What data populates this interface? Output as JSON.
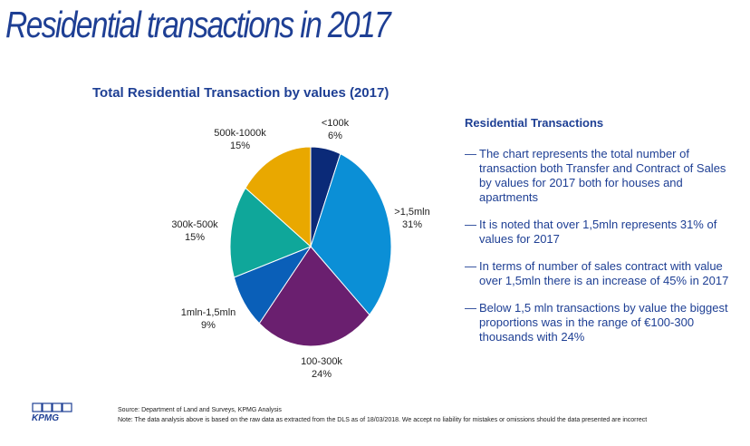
{
  "page": {
    "title": "Residential transactions in 2017"
  },
  "chart_data": {
    "type": "pie",
    "title": "Total Residential Transaction by values (2017)",
    "slices": [
      {
        "label": "<100k",
        "value": 6,
        "value_label": "6%",
        "color": "#0b2a78"
      },
      {
        "label": ">1,5mln",
        "value": 31,
        "value_label": "31%",
        "color": "#0b8fd6"
      },
      {
        "label": "100-300k",
        "value": 24,
        "value_label": "24%",
        "color": "#6a1f6f"
      },
      {
        "label": "1mln-1,5mln",
        "value": 9,
        "value_label": "9%",
        "color": "#0a5fb8"
      },
      {
        "label": "300k-500k",
        "value": 15,
        "value_label": "15%",
        "color": "#0fa79a"
      },
      {
        "label": "500k-1000k",
        "value": 15,
        "value_label": "15%",
        "color": "#e9a800"
      }
    ]
  },
  "panel": {
    "heading": "Residential Transactions",
    "bullets": [
      "The chart represents the total number of transaction both Transfer and Contract of Sales by values  for 2017 both for houses and apartments",
      "It is noted that over 1,5mln  represents 31% of values for 2017",
      "In terms of number of sales contract with value over 1,5mln there is an increase of 45% in 2017",
      "Below 1,5 mln transactions by value the biggest proportions was in the range of €100-300 thousands with 24%"
    ],
    "dash": "—"
  },
  "footer": {
    "logo_text": "KPMG",
    "source": "Source: Department of Land  and Surveys, KPMG Analysis",
    "note": "Note: The data analysis above is based on the raw data as extracted from the DLS as of 18/03/2018. We accept no liability for mistakes or omissions should the data presented are incorrect"
  }
}
